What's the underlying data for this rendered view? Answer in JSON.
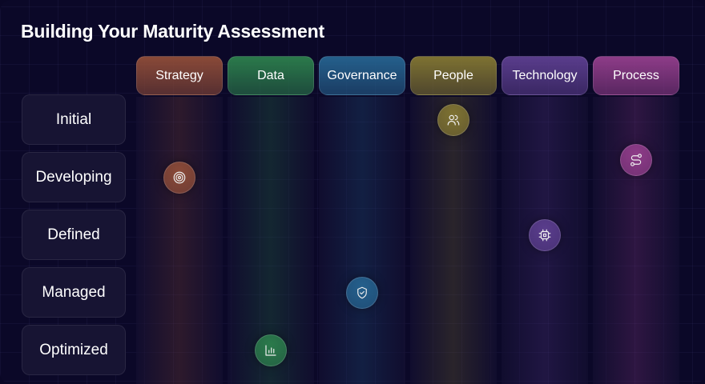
{
  "title": "Building Your Maturity Assessment",
  "levels": [
    "Initial",
    "Developing",
    "Defined",
    "Managed",
    "Optimized"
  ],
  "dimensions": [
    {
      "label": "Strategy",
      "color": "#8a4a38",
      "icon": "target-icon",
      "level": 1
    },
    {
      "label": "Data",
      "color": "#2b7a4b",
      "icon": "bar-chart-icon",
      "level": 4
    },
    {
      "label": "Governance",
      "color": "#25608c",
      "icon": "shield-check-icon",
      "level": 3
    },
    {
      "label": "People",
      "color": "#7e7232",
      "icon": "users-icon",
      "level": 0
    },
    {
      "label": "Technology",
      "color": "#5a3d8c",
      "icon": "cpu-icon",
      "level": 2
    },
    {
      "label": "Process",
      "color": "#8e3c88",
      "icon": "route-icon",
      "level": 0.7
    }
  ]
}
